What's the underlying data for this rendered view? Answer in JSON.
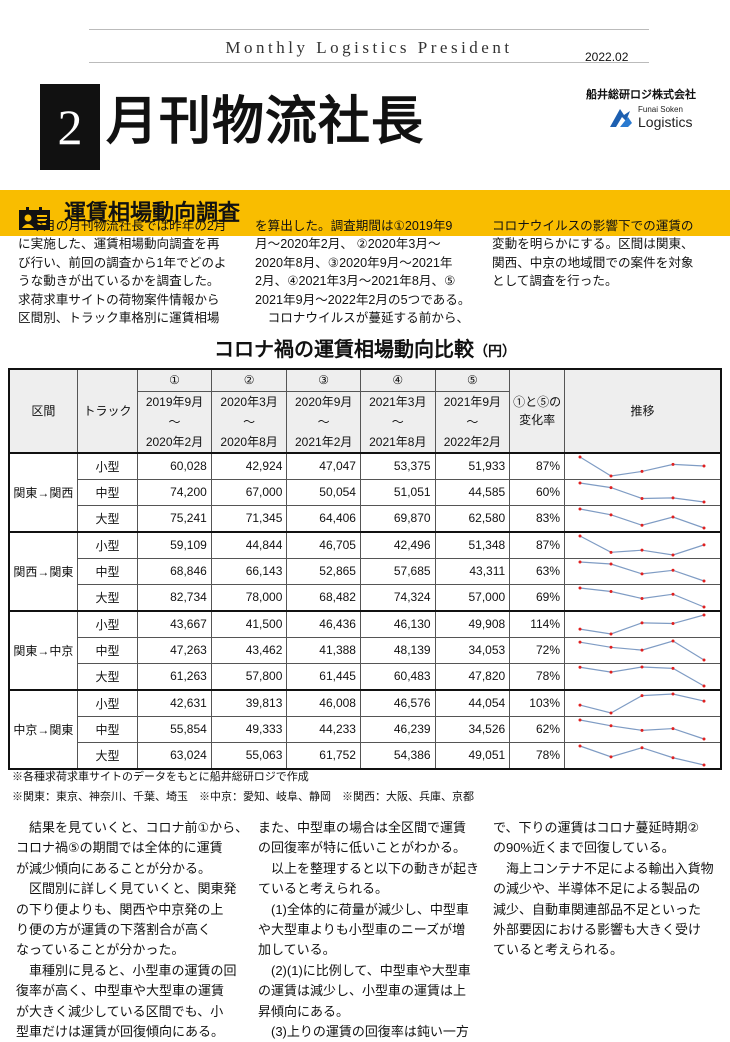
{
  "header": {
    "masthead": "Monthly Logistics President",
    "date": "2022.02",
    "issue_number": "2",
    "title": "月刊物流社長",
    "company": "船井総研ロジ株式会社",
    "logo_text": [
      "Funai Soken",
      "Logistics"
    ]
  },
  "section": {
    "title": "運賃相場動向調査",
    "icon": "id-card-icon",
    "band_color": "#f9bd00"
  },
  "intro": [
    [
      "　今月の月刊物流社長では昨年の2月",
      "に実施した、運賃相場動向調査を再",
      "び行い、前回の調査から1年でどのよ",
      "うな動きが出ているかを調査した。",
      "求荷求車サイトの荷物案件情報から",
      "区間別、トラック車格別に運賃相場"
    ],
    [
      "を算出した。調査期間は①2019年9",
      "月～2020年2月、 ②2020年3月～",
      "2020年8月、③2020年9月～2021年",
      "2月、④2021年3月～2021年8月、⑤",
      "2021年9月～2022年2月の5つである。",
      "　コロナウイルスが蔓延する前から、"
    ],
    [
      "コロナウイルスの影響下での運賃の",
      "変動を明らかにする。区間は関東、",
      "関西、中京の地域間での案件を対象",
      "として調査を行った。"
    ]
  ],
  "chart_title": "コロナ禍の運賃相場動向比較",
  "chart_unit": "（円）",
  "chart_data": {
    "type": "table",
    "columns": {
      "route": "区間",
      "truck": "トラック",
      "periods": [
        {
          "no": "①",
          "from": "2019年9月",
          "sep": "～",
          "to": "2020年2月"
        },
        {
          "no": "②",
          "from": "2020年3月",
          "sep": "～",
          "to": "2020年8月"
        },
        {
          "no": "③",
          "from": "2020年9月",
          "sep": "～",
          "to": "2021年2月"
        },
        {
          "no": "④",
          "from": "2021年3月",
          "sep": "～",
          "to": "2021年8月"
        },
        {
          "no": "⑤",
          "from": "2021年9月",
          "sep": "～",
          "to": "2022年2月"
        }
      ],
      "rate": [
        "①と⑤の",
        "変化率"
      ],
      "trend": "推移"
    },
    "groups": [
      {
        "route": "関東→関西",
        "rows": [
          {
            "truck": "小型",
            "values": [
              60028,
              42924,
              47047,
              53375,
              51933
            ],
            "rate": "87%"
          },
          {
            "truck": "中型",
            "values": [
              74200,
              67000,
              50054,
              51051,
              44585
            ],
            "rate": "60%"
          },
          {
            "truck": "大型",
            "values": [
              75241,
              71345,
              64406,
              69870,
              62580
            ],
            "rate": "83%"
          }
        ]
      },
      {
        "route": "関西→関東",
        "rows": [
          {
            "truck": "小型",
            "values": [
              59109,
              44844,
              46705,
              42496,
              51348
            ],
            "rate": "87%"
          },
          {
            "truck": "中型",
            "values": [
              68846,
              66143,
              52865,
              57685,
              43311
            ],
            "rate": "63%"
          },
          {
            "truck": "大型",
            "values": [
              82734,
              78000,
              68482,
              74324,
              57000
            ],
            "rate": "69%"
          }
        ]
      },
      {
        "route": "関東→中京",
        "rows": [
          {
            "truck": "小型",
            "values": [
              43667,
              41500,
              46436,
              46130,
              49908
            ],
            "rate": "114%"
          },
          {
            "truck": "中型",
            "values": [
              47263,
              43462,
              41388,
              48139,
              34053
            ],
            "rate": "72%"
          },
          {
            "truck": "大型",
            "values": [
              61263,
              57800,
              61445,
              60483,
              47820
            ],
            "rate": "78%"
          }
        ]
      },
      {
        "route": "中京→関東",
        "rows": [
          {
            "truck": "小型",
            "values": [
              42631,
              39813,
              46008,
              46576,
              44054
            ],
            "rate": "103%"
          },
          {
            "truck": "中型",
            "values": [
              55854,
              49333,
              44233,
              46239,
              34526
            ],
            "rate": "62%"
          },
          {
            "truck": "大型",
            "values": [
              63024,
              55063,
              61752,
              54386,
              49051
            ],
            "rate": "78%"
          }
        ]
      }
    ],
    "spark_line_color": "#7f9cc4",
    "spark_point_color": "#e02020"
  },
  "notes": [
    "※各種求荷求車サイトのデータをもとに船井総研ロジで作成",
    "※関東：東京、神奈川、千葉、埼玉　※中京：愛知、岐阜、静岡　※関西：大阪、兵庫、京都"
  ],
  "body": [
    [
      "　結果を見ていくと、コロナ前①から、",
      "コロナ禍⑤の期間では全体的に運賃",
      "が減少傾向にあることが分かる。",
      "　区間別に詳しく見ていくと、関東発",
      "の下り便よりも、関西や中京発の上",
      "り便の方が運賃の下落割合が高く",
      "なっていることが分かった。",
      "　車種別に見ると、小型車の運賃の回",
      "復率が高く、中型車や大型車の運賃",
      "が大きく減少している区間でも、小",
      "型車だけは運賃が回復傾向にある。"
    ],
    [
      "また、中型車の場合は全区間で運賃",
      "の回復率が特に低いことがわかる。",
      "　以上を整理すると以下の動きが起き",
      "ていると考えられる。",
      "　(1)全体的に荷量が減少し、中型車",
      "や大型車よりも小型車のニーズが増",
      "加している。",
      "　(2)(1)に比例して、中型車や大型車",
      "の運賃は減少し、小型車の運賃は上",
      "昇傾向にある。",
      "　(3)上りの運賃の回復率は鈍い一方"
    ],
    [
      "で、下りの運賃はコロナ蔓延時期②",
      "の90%近くまで回復している。",
      "　海上コンテナ不足による輸出入貨物",
      "の減少や、半導体不足による製品の",
      "減少、自動車関連部品不足といった",
      "外部要因における影響も大きく受け",
      "ていると考えられる。"
    ]
  ]
}
